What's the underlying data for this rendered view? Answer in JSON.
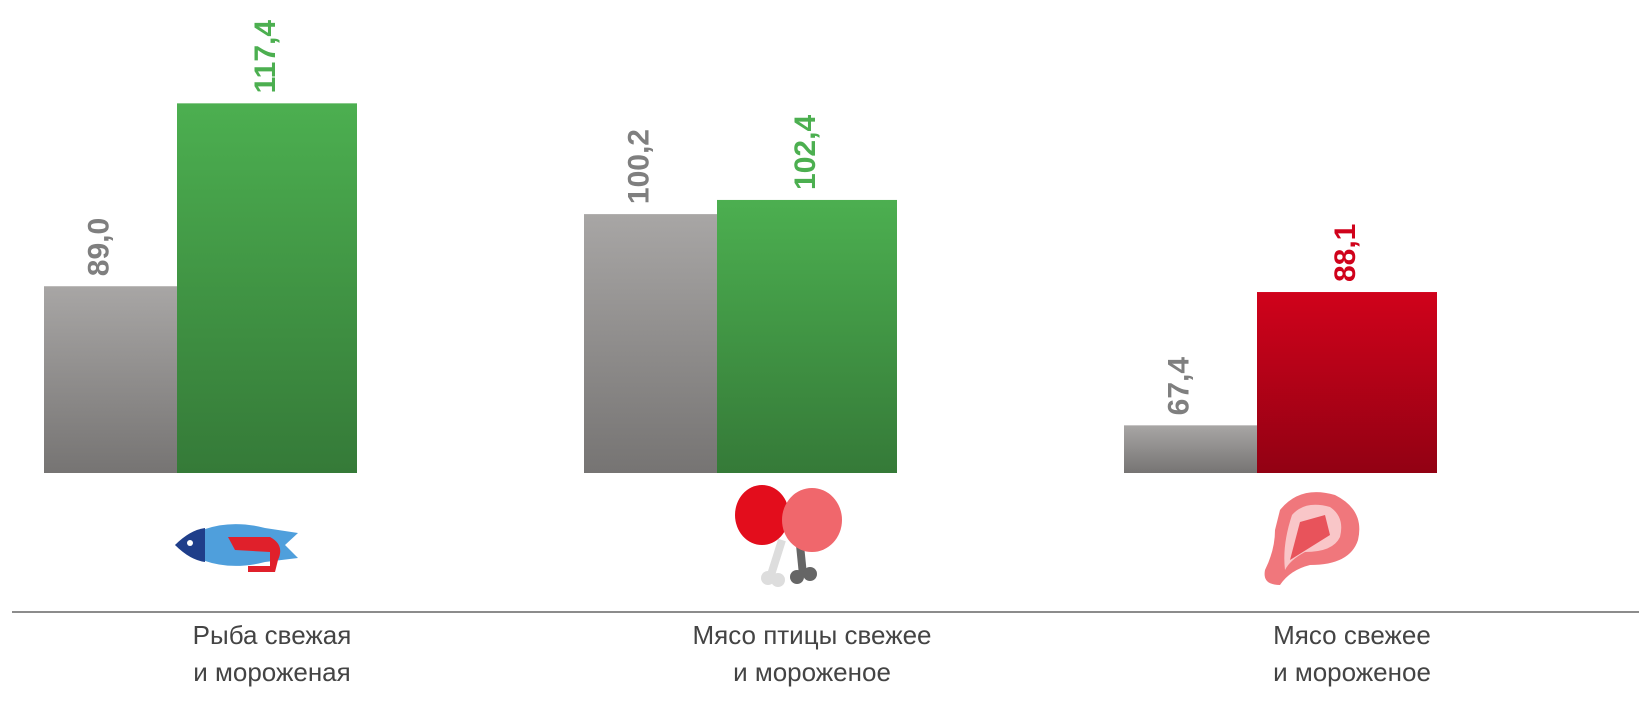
{
  "chart_data": {
    "type": "bar",
    "categories": [
      [
        "Рыба свежая",
        "и мороженая"
      ],
      [
        "Мясо птицы свежее",
        "и мороженое"
      ],
      [
        "Мясо  свежее",
        "и мороженое"
      ]
    ],
    "series": [
      {
        "color": "#a8a6a5",
        "label_color": "#7f7f7f",
        "values": [
          89.0,
          100.2,
          67.4
        ],
        "value_labels": [
          "89,0",
          "100,2",
          "67,4"
        ]
      },
      {
        "colors": [
          "#4caf50",
          "#4caf50",
          "#d0021b"
        ],
        "values": [
          117.4,
          102.4,
          88.1
        ],
        "value_labels": [
          "117,4",
          "102,4",
          "88,1"
        ]
      }
    ],
    "ylim": [
      60,
      120
    ]
  }
}
